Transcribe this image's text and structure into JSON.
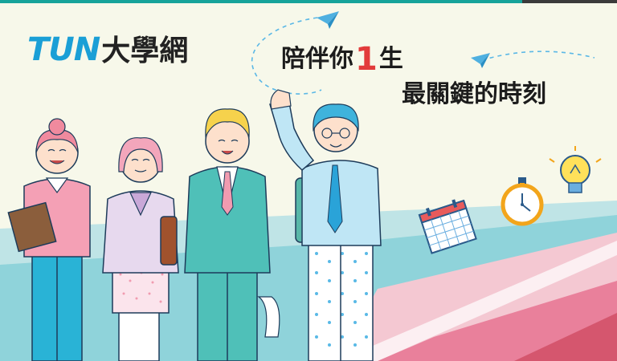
{
  "logo": {
    "en": "TUN",
    "zh": "大學網"
  },
  "tagline": {
    "before": "陪伴你",
    "number": "1",
    "after": "生",
    "line2": "最關鍵的時刻"
  },
  "colors": {
    "brand_blue": "#1a9fd6",
    "teal": "#16a39a",
    "accent_red": "#e23b3b"
  },
  "icons": [
    "paper-plane-icon",
    "calendar-icon",
    "stopwatch-icon",
    "lightbulb-icon"
  ]
}
